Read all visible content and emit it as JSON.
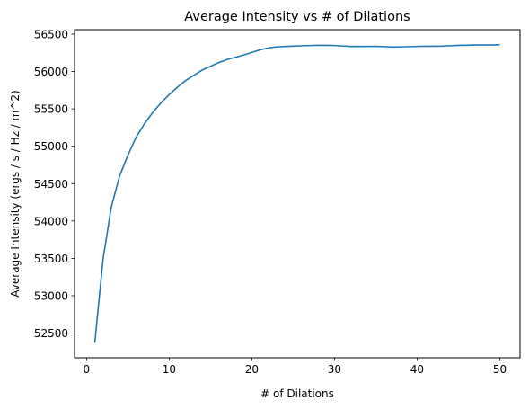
{
  "chart_data": {
    "type": "line",
    "title": "Average Intensity vs # of Dilations",
    "xlabel": "# of Dilations",
    "ylabel": "Average Intensity (ergs / s / Hz / m^2)",
    "xlim": [
      -1.45,
      52.45
    ],
    "ylim": [
      52170,
      56560
    ],
    "xticks": [
      0,
      10,
      20,
      30,
      40,
      50
    ],
    "yticks": [
      52500,
      53000,
      53500,
      54000,
      54500,
      55000,
      55500,
      56000,
      56500
    ],
    "grid": false,
    "series": [
      {
        "color": "#1f77b4",
        "x": [
          1,
          2,
          3,
          4,
          5,
          6,
          7,
          8,
          9,
          10,
          11,
          12,
          13,
          14,
          15,
          16,
          17,
          18,
          19,
          20,
          21,
          22,
          23,
          24,
          25,
          26,
          27,
          28,
          29,
          30,
          31,
          32,
          33,
          34,
          35,
          36,
          37,
          38,
          39,
          40,
          41,
          42,
          43,
          44,
          45,
          46,
          47,
          48,
          49,
          50
        ],
        "values": [
          52370,
          53490,
          54190,
          54600,
          54880,
          55120,
          55300,
          55450,
          55580,
          55690,
          55790,
          55880,
          55950,
          56020,
          56070,
          56120,
          56160,
          56190,
          56220,
          56255,
          56290,
          56315,
          56330,
          56335,
          56340,
          56345,
          56348,
          56350,
          56350,
          56348,
          56342,
          56335,
          56335,
          56336,
          56337,
          56333,
          56328,
          56330,
          56333,
          56336,
          56338,
          56338,
          56340,
          56345,
          56350,
          56352,
          56355,
          56355,
          56355,
          56358
        ]
      }
    ]
  }
}
